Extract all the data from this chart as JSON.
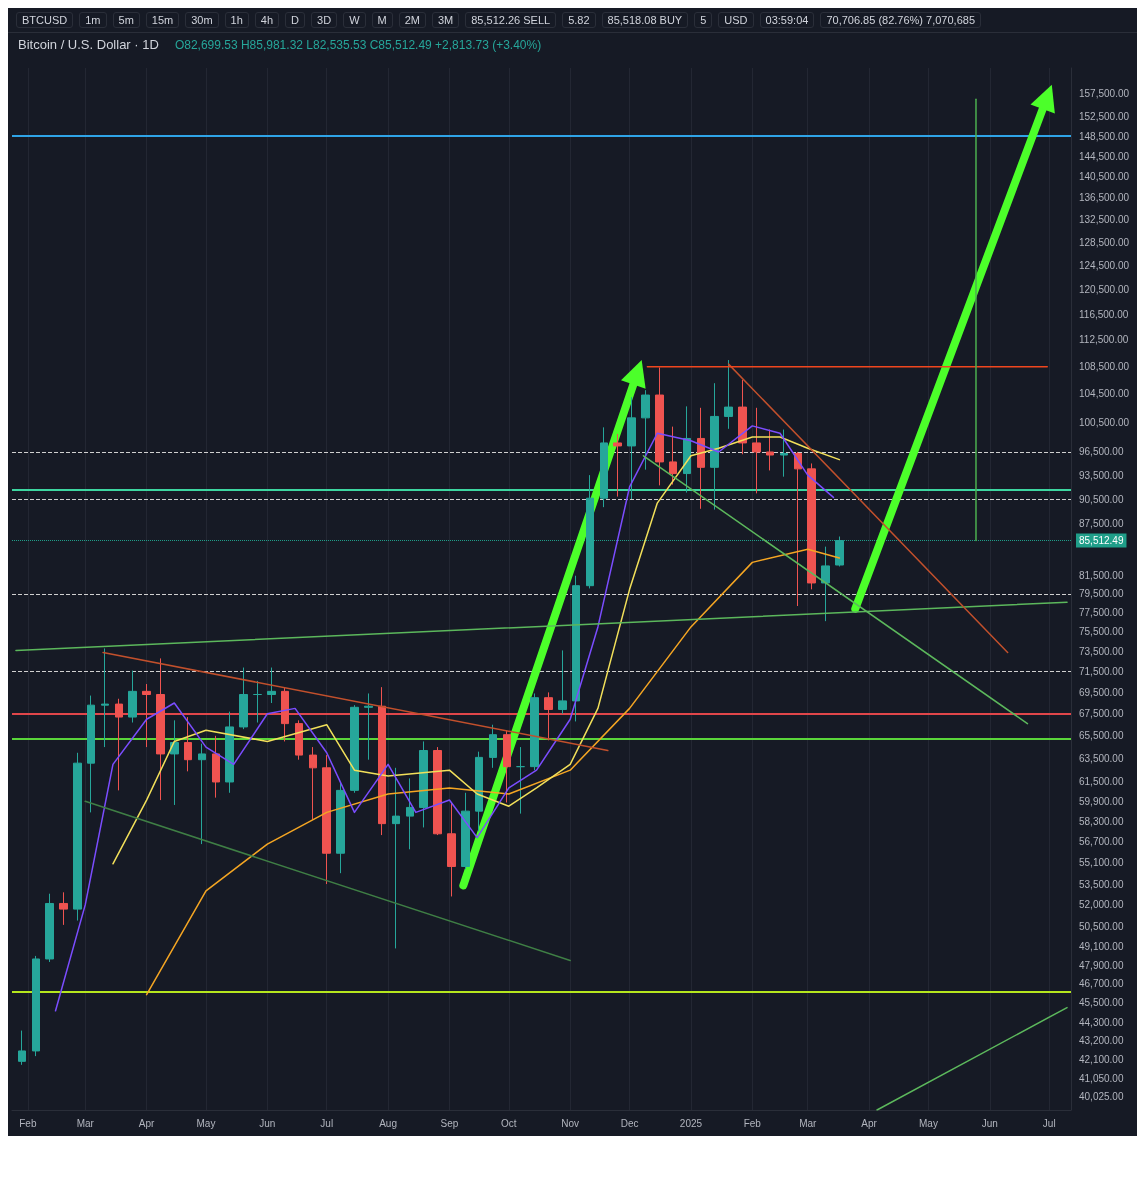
{
  "chart_data": {
    "type": "candlestick",
    "title": "Bitcoin / U.S. Dollar · 1D",
    "subtitle": "O82,699.53 H85,981.32 L82,535.53 C85,512.49 +2,813.73 (+3.40%)",
    "x": [
      "2024-01-29",
      "2024-02-05",
      "2024-02-12",
      "2024-02-19",
      "2024-02-26",
      "2024-03-04",
      "2024-03-11",
      "2024-03-18",
      "2024-03-25",
      "2024-04-01",
      "2024-04-08",
      "2024-04-15",
      "2024-04-22",
      "2024-04-29",
      "2024-05-06",
      "2024-05-13",
      "2024-05-20",
      "2024-05-27",
      "2024-06-03",
      "2024-06-10",
      "2024-06-17",
      "2024-06-24",
      "2024-07-01",
      "2024-07-08",
      "2024-07-15",
      "2024-07-22",
      "2024-07-29",
      "2024-08-05",
      "2024-08-12",
      "2024-08-19",
      "2024-08-26",
      "2024-09-02",
      "2024-09-09",
      "2024-09-16",
      "2024-09-23",
      "2024-09-30",
      "2024-10-07",
      "2024-10-14",
      "2024-10-21",
      "2024-10-28",
      "2024-11-04",
      "2024-11-11",
      "2024-11-18",
      "2024-11-25",
      "2024-12-02",
      "2024-12-09",
      "2024-12-16",
      "2024-12-23",
      "2024-12-30",
      "2025-01-06",
      "2025-01-13",
      "2025-01-20",
      "2025-01-27",
      "2025-02-03",
      "2025-02-10",
      "2025-02-17",
      "2025-02-24",
      "2025-03-03",
      "2025-03-10",
      "2025-03-17"
    ],
    "ohlc": [
      [
        42000,
        43800,
        41800,
        42600
      ],
      [
        42600,
        48500,
        42300,
        48300
      ],
      [
        48300,
        52800,
        48100,
        52100
      ],
      [
        52100,
        52900,
        50600,
        51700
      ],
      [
        51700,
        64000,
        50900,
        63100
      ],
      [
        63100,
        69200,
        59000,
        68300
      ],
      [
        68300,
        73800,
        64500,
        68400
      ],
      [
        68400,
        68900,
        60800,
        67200
      ],
      [
        67200,
        71600,
        66700,
        69600
      ],
      [
        69600,
        70300,
        64500,
        69300
      ],
      [
        69300,
        72800,
        60000,
        63900
      ],
      [
        63900,
        66900,
        59600,
        64900
      ],
      [
        64900,
        67200,
        62400,
        63400
      ],
      [
        63400,
        64800,
        56500,
        63900
      ],
      [
        63900,
        65500,
        60200,
        61500
      ],
      [
        61500,
        67700,
        60600,
        66300
      ],
      [
        66300,
        71900,
        66100,
        69300
      ],
      [
        69300,
        70600,
        66700,
        69300
      ],
      [
        69300,
        71900,
        68500,
        69600
      ],
      [
        69600,
        70000,
        65000,
        66600
      ],
      [
        66600,
        66900,
        63400,
        63800
      ],
      [
        63800,
        64500,
        58400,
        62700
      ],
      [
        62700,
        63800,
        53500,
        55800
      ],
      [
        55800,
        61400,
        54300,
        60800
      ],
      [
        60800,
        68300,
        60600,
        68100
      ],
      [
        68100,
        69400,
        63400,
        68200
      ],
      [
        68200,
        70000,
        57200,
        58100
      ],
      [
        58100,
        62700,
        49000,
        58700
      ],
      [
        58700,
        61800,
        56100,
        59400
      ],
      [
        59400,
        65000,
        57800,
        64200
      ],
      [
        64200,
        64500,
        57200,
        57300
      ],
      [
        57300,
        59800,
        52600,
        54800
      ],
      [
        54800,
        60600,
        54600,
        59100
      ],
      [
        59100,
        64100,
        57500,
        63600
      ],
      [
        63600,
        66500,
        62700,
        65600
      ],
      [
        65600,
        66000,
        59800,
        62800
      ],
      [
        62800,
        64500,
        58900,
        62800
      ],
      [
        62800,
        69400,
        62500,
        69000
      ],
      [
        69000,
        69500,
        65100,
        67900
      ],
      [
        67900,
        73600,
        67500,
        68700
      ],
      [
        68700,
        81500,
        66800,
        80400
      ],
      [
        80400,
        93500,
        80100,
        90600
      ],
      [
        90600,
        99800,
        89500,
        97700
      ],
      [
        97700,
        98900,
        90800,
        97300
      ],
      [
        97300,
        104000,
        90500,
        101100
      ],
      [
        101100,
        105000,
        94200,
        104300
      ],
      [
        104300,
        108300,
        92200,
        95200
      ],
      [
        95200,
        99900,
        92300,
        93700
      ],
      [
        93700,
        102700,
        91300,
        98300
      ],
      [
        98300,
        102500,
        89300,
        94500
      ],
      [
        94500,
        106000,
        89200,
        101300
      ],
      [
        101300,
        109400,
        99600,
        102600
      ],
      [
        102600,
        106500,
        96200,
        97700
      ],
      [
        97700,
        102500,
        91200,
        96500
      ],
      [
        96500,
        99500,
        94100,
        96100
      ],
      [
        96100,
        99500,
        93300,
        96300
      ],
      [
        96300,
        96500,
        78200,
        94300
      ],
      [
        94300,
        95000,
        80000,
        80700
      ],
      [
        80700,
        84800,
        76600,
        82600
      ],
      [
        82699.53,
        85981.32,
        82535.53,
        85512.49
      ]
    ],
    "series": [
      {
        "type": "line",
        "color": "#f5a623",
        "x": [
          "2024-04-01",
          "2024-05-01",
          "2024-06-01",
          "2024-07-01",
          "2024-08-01",
          "2024-09-01",
          "2024-10-01",
          "2024-11-01",
          "2024-12-01",
          "2025-01-01",
          "2025-02-01",
          "2025-03-01",
          "2025-03-17"
        ],
        "values": [
          46000,
          53000,
          56500,
          59000,
          60500,
          61000,
          60500,
          62500,
          68000,
          76000,
          83000,
          84500,
          83500
        ]
      },
      {
        "type": "line",
        "color": "#f2e05a",
        "x": [
          "2024-03-15",
          "2024-04-01",
          "2024-04-15",
          "2024-05-01",
          "2024-06-01",
          "2024-07-01",
          "2024-07-15",
          "2024-08-01",
          "2024-09-01",
          "2024-09-15",
          "2024-10-01",
          "2024-10-15",
          "2024-11-01",
          "2024-11-15",
          "2024-12-01",
          "2024-12-15",
          "2025-01-01",
          "2025-01-15",
          "2025-02-01",
          "2025-02-15",
          "2025-03-01",
          "2025-03-17"
        ],
        "values": [
          55000,
          60000,
          65000,
          66000,
          65000,
          66500,
          62500,
          62000,
          62500,
          60500,
          59500,
          61000,
          63000,
          68000,
          80000,
          90000,
          96000,
          97000,
          98500,
          98500,
          97000,
          95500
        ]
      },
      {
        "type": "line",
        "color": "#7b4dff",
        "x": [
          "2024-02-15",
          "2024-03-01",
          "2024-03-15",
          "2024-04-01",
          "2024-04-15",
          "2024-05-01",
          "2024-05-15",
          "2024-06-01",
          "2024-06-15",
          "2024-07-01",
          "2024-07-15",
          "2024-08-01",
          "2024-08-15",
          "2024-09-01",
          "2024-09-15",
          "2024-10-01",
          "2024-10-15",
          "2024-11-01",
          "2024-11-15",
          "2024-12-01",
          "2024-12-15",
          "2025-01-01",
          "2025-01-15",
          "2025-02-01",
          "2025-02-15",
          "2025-03-01",
          "2025-03-14"
        ],
        "values": [
          45000,
          52000,
          63000,
          67000,
          68500,
          64500,
          63000,
          67500,
          68000,
          64000,
          59000,
          63000,
          59000,
          60000,
          57000,
          61000,
          62500,
          67000,
          76000,
          92000,
          99000,
          98000,
          96500,
          100000,
          99000,
          93500,
          90700
        ]
      },
      {
        "type": "line",
        "color": "#5cb85c",
        "x": [
          "2024-01-26",
          "2025-07-10"
        ],
        "values": [
          73600,
          78600
        ]
      },
      {
        "type": "line",
        "color": "#5cb85c",
        "x": [
          "2024-12-08",
          "2025-06-20"
        ],
        "values": [
          96000,
          66600
        ]
      },
      {
        "type": "line",
        "color": "#3f7f45",
        "x": [
          "2024-03-01",
          "2024-11-01"
        ],
        "values": [
          59900,
          48200
        ]
      },
      {
        "type": "line",
        "color": "#c2502c",
        "x": [
          "2024-03-10",
          "2024-11-20"
        ],
        "values": [
          73400,
          64200
        ]
      },
      {
        "type": "line",
        "color": "#c2502c",
        "x": [
          "2025-01-20",
          "2025-06-10"
        ],
        "values": [
          108800,
          73400
        ]
      },
      {
        "type": "line",
        "color": "#5cb85c",
        "x": [
          "2025-04-05",
          "2025-07-10"
        ],
        "values": [
          39300,
          45200
        ]
      },
      {
        "type": "line",
        "color": "#f0461e",
        "x": [
          "2024-12-10",
          "2025-06-30"
        ],
        "values": [
          108400,
          108400
        ]
      },
      {
        "type": "line",
        "color": "#4caf50",
        "x": [
          "2025-05-25",
          "2025-05-25"
        ],
        "values": [
          85512.49,
          156200
        ]
      },
      {
        "type": "line",
        "color": "#4cff2a",
        "marker": "triangle",
        "x": [
          "2024-09-08",
          "2024-12-05"
        ],
        "values": [
          53400,
          107600
        ]
      },
      {
        "type": "line",
        "color": "#4cff2a",
        "marker": "triangle",
        "x": [
          "2025-03-25",
          "2025-06-30"
        ],
        "values": [
          77900,
          156700
        ]
      }
    ],
    "xlim": [
      "2024-01-24",
      "2025-07-12"
    ],
    "xticks": [
      {
        "value": "2024-02-01",
        "label": "Feb"
      },
      {
        "value": "2024-03-01",
        "label": "Mar"
      },
      {
        "value": "2024-04-01",
        "label": "Apr"
      },
      {
        "value": "2024-05-01",
        "label": "May"
      },
      {
        "value": "2024-06-01",
        "label": "Jun"
      },
      {
        "value": "2024-07-01",
        "label": "Jul"
      },
      {
        "value": "2024-08-01",
        "label": "Aug"
      },
      {
        "value": "2024-09-01",
        "label": "Sep"
      },
      {
        "value": "2024-10-01",
        "label": "Oct"
      },
      {
        "value": "2024-11-01",
        "label": "Nov"
      },
      {
        "value": "2024-12-01",
        "label": "Dec"
      },
      {
        "value": "2025-01-01",
        "label": "2025"
      },
      {
        "value": "2025-02-01",
        "label": "Feb"
      },
      {
        "value": "2025-03-01",
        "label": "Mar"
      },
      {
        "value": "2025-04-01",
        "label": "Apr"
      },
      {
        "value": "2025-05-01",
        "label": "May"
      },
      {
        "value": "2025-06-01",
        "label": "Jun"
      },
      {
        "value": "2025-07-01",
        "label": "Jul"
      }
    ],
    "log": true,
    "ylim": [
      39300,
      163000
    ],
    "yticks": [
      {
        "value": 157500,
        "label": "157,500.00"
      },
      {
        "value": 152500,
        "label": "152,500.00"
      },
      {
        "value": 148500,
        "label": "148,500.00"
      },
      {
        "value": 144500,
        "label": "144,500.00"
      },
      {
        "value": 140500,
        "label": "140,500.00"
      },
      {
        "value": 136500,
        "label": "136,500.00"
      },
      {
        "value": 132500,
        "label": "132,500.00"
      },
      {
        "value": 128500,
        "label": "128,500.00"
      },
      {
        "value": 124500,
        "label": "124,500.00"
      },
      {
        "value": 120500,
        "label": "120,500.00"
      },
      {
        "value": 116500,
        "label": "116,500.00"
      },
      {
        "value": 112500,
        "label": "112,500.00"
      },
      {
        "value": 108500,
        "label": "108,500.00"
      },
      {
        "value": 104500,
        "label": "104,500.00"
      },
      {
        "value": 100500,
        "label": "100,500.00"
      },
      {
        "value": 96500,
        "label": "96,500.00"
      },
      {
        "value": 93500,
        "label": "93,500.00"
      },
      {
        "value": 90500,
        "label": "90,500.00"
      },
      {
        "value": 87500,
        "label": "87,500.00"
      },
      {
        "value": 81500,
        "label": "81,500.00"
      },
      {
        "value": 79500,
        "label": "79,500.00"
      },
      {
        "value": 77500,
        "label": "77,500.00"
      },
      {
        "value": 75500,
        "label": "75,500.00"
      },
      {
        "value": 73500,
        "label": "73,500.00"
      },
      {
        "value": 71500,
        "label": "71,500.00"
      },
      {
        "value": 69500,
        "label": "69,500.00"
      },
      {
        "value": 67500,
        "label": "67,500.00"
      },
      {
        "value": 65500,
        "label": "65,500.00"
      },
      {
        "value": 63500,
        "label": "63,500.00"
      },
      {
        "value": 61500,
        "label": "61,500.00"
      },
      {
        "value": 59900,
        "label": "59,900.00"
      },
      {
        "value": 58300,
        "label": "58,300.00"
      },
      {
        "value": 56700,
        "label": "56,700.00"
      },
      {
        "value": 55100,
        "label": "55,100.00"
      },
      {
        "value": 53500,
        "label": "53,500.00"
      },
      {
        "value": 52000,
        "label": "52,000.00"
      },
      {
        "value": 50500,
        "label": "50,500.00"
      },
      {
        "value": 49100,
        "label": "49,100.00"
      },
      {
        "value": 47900,
        "label": "47,900.00"
      },
      {
        "value": 46700,
        "label": "46,700.00"
      },
      {
        "value": 45500,
        "label": "45,500.00"
      },
      {
        "value": 44300,
        "label": "44,300.00"
      },
      {
        "value": 43200,
        "label": "43,200.00"
      },
      {
        "value": 42100,
        "label": "42,100.00"
      },
      {
        "value": 41050,
        "label": "41,050.00"
      },
      {
        "value": 40025,
        "label": "40,025.00"
      }
    ],
    "ref_lines": [
      {
        "axis": "y",
        "value": 148500,
        "color": "#2fa4e7",
        "line_style": "solid"
      },
      {
        "axis": "y",
        "value": 96500,
        "color": "#d0d0d0",
        "line_style": "dashed"
      },
      {
        "axis": "y",
        "value": 91600,
        "color": "#3dd6a0",
        "line_style": "solid"
      },
      {
        "axis": "y",
        "value": 90500,
        "color": "#d0d0d0",
        "line_style": "dashed"
      },
      {
        "axis": "y",
        "value": 85512.49,
        "label": "85,512.49",
        "color": "#1f9e89",
        "line_style": "dotted"
      },
      {
        "axis": "y",
        "value": 79500,
        "color": "#d0d0d0",
        "line_style": "dashed"
      },
      {
        "axis": "y",
        "value": 71500,
        "color": "#d0d0d0",
        "line_style": "dashed"
      },
      {
        "axis": "y",
        "value": 67500,
        "color": "#e0464a",
        "line_style": "solid"
      },
      {
        "axis": "y",
        "value": 65200,
        "color": "#5ad63a",
        "line_style": "solid"
      },
      {
        "axis": "y",
        "value": 46200,
        "color": "#b5e61d",
        "line_style": "solid"
      }
    ],
    "annotations": [
      "BTCUSD",
      "1m",
      "5m",
      "15m",
      "30m",
      "1h",
      "4h",
      "D",
      "3D",
      "W",
      "M",
      "2M",
      "3M",
      "85,512.26 SELL",
      "5.82",
      "85,518.08 BUY",
      "5",
      "USD",
      "03:59:04",
      "70,706.85 (82.76%) 7,070,685"
    ],
    "grid": "x"
  }
}
